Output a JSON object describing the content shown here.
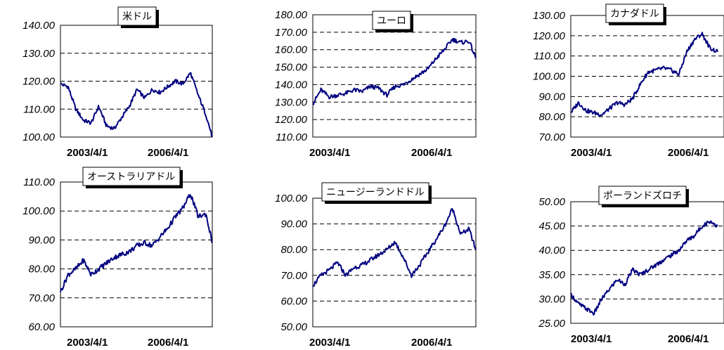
{
  "chart_data": [
    {
      "type": "line",
      "title": "米ドル",
      "xlabel": "",
      "ylabel": "",
      "x_ticks": [
        "2003/4/1",
        "2006/4/1"
      ],
      "y_ticks": [
        "100.00",
        "110.00",
        "120.00",
        "130.00",
        "140.00"
      ],
      "ylim": [
        100,
        140
      ],
      "grid": "horizontal dashed",
      "line_color": "#00007f",
      "series": [
        {
          "x": [
            "2003/4/1",
            "2003/7/1",
            "2003/10/1",
            "2004/1/1",
            "2004/4/1",
            "2004/7/1",
            "2004/10/1",
            "2005/1/1",
            "2005/4/1",
            "2005/7/1",
            "2005/10/1",
            "2006/1/1",
            "2006/4/1",
            "2006/7/1",
            "2006/10/1",
            "2007/1/1",
            "2007/4/1",
            "2007/7/1",
            "2007/10/1",
            "2008/1/1",
            "2008/3/17"
          ],
          "values": [
            119,
            118,
            110,
            106,
            105,
            111,
            104,
            103,
            107,
            111,
            117,
            114,
            117,
            116,
            118,
            120,
            119,
            123,
            115,
            108,
            100
          ]
        }
      ]
    },
    {
      "type": "line",
      "title": "ユーロ",
      "xlabel": "",
      "ylabel": "",
      "x_ticks": [
        "2003/4/1",
        "2006/4/1"
      ],
      "y_ticks": [
        "110.00",
        "120.00",
        "130.00",
        "140.00",
        "150.00",
        "160.00",
        "170.00",
        "180.00"
      ],
      "ylim": [
        110,
        180
      ],
      "grid": "horizontal dashed",
      "line_color": "#00007f",
      "series": [
        {
          "x": [
            "2003/4/1",
            "2003/7/1",
            "2003/10/1",
            "2004/1/1",
            "2004/4/1",
            "2004/7/1",
            "2004/10/1",
            "2005/1/1",
            "2005/4/1",
            "2005/7/1",
            "2005/10/1",
            "2006/1/1",
            "2006/4/1",
            "2006/7/1",
            "2006/10/1",
            "2007/1/1",
            "2007/4/1",
            "2007/7/1",
            "2007/10/1",
            "2008/1/1",
            "2008/3/17"
          ],
          "values": [
            129,
            137,
            133,
            134,
            135,
            137,
            136,
            139,
            138,
            134,
            139,
            140,
            143,
            146,
            149,
            155,
            160,
            166,
            164,
            165,
            155
          ]
        }
      ]
    },
    {
      "type": "line",
      "title": "カナダドル",
      "xlabel": "",
      "ylabel": "",
      "x_ticks": [
        "2003/4/1",
        "2006/4/1"
      ],
      "y_ticks": [
        "70.00",
        "80.00",
        "90.00",
        "100.00",
        "110.00",
        "120.00",
        "130.00"
      ],
      "ylim": [
        70,
        130
      ],
      "grid": "horizontal dashed",
      "line_color": "#00007f",
      "series": [
        {
          "x": [
            "2003/4/1",
            "2003/7/1",
            "2003/10/1",
            "2004/1/1",
            "2004/4/1",
            "2004/7/1",
            "2004/10/1",
            "2005/1/1",
            "2005/4/1",
            "2005/7/1",
            "2005/10/1",
            "2006/1/1",
            "2006/4/1",
            "2006/7/1",
            "2006/10/1",
            "2007/1/1",
            "2007/4/1",
            "2007/7/1",
            "2007/10/1",
            "2008/1/1"
          ],
          "values": [
            82,
            87,
            83,
            82,
            81,
            84,
            87,
            86,
            89,
            96,
            102,
            103,
            104,
            103,
            101,
            112,
            118,
            121,
            114,
            112
          ]
        }
      ]
    },
    {
      "type": "line",
      "title": "オーストラリアドル",
      "xlabel": "",
      "ylabel": "",
      "x_ticks": [
        "2003/4/1",
        "2006/4/1"
      ],
      "y_ticks": [
        "60.00",
        "70.00",
        "80.00",
        "90.00",
        "100.00",
        "110.00"
      ],
      "ylim": [
        60,
        110
      ],
      "grid": "horizontal dashed",
      "line_color": "#00007f",
      "series": [
        {
          "x": [
            "2003/4/1",
            "2003/7/1",
            "2003/10/1",
            "2004/1/1",
            "2004/4/1",
            "2004/7/1",
            "2004/10/1",
            "2005/1/1",
            "2005/4/1",
            "2005/7/1",
            "2005/10/1",
            "2006/1/1",
            "2006/4/1",
            "2006/7/1",
            "2006/10/1",
            "2007/1/1",
            "2007/4/1",
            "2007/7/1",
            "2007/10/1",
            "2008/1/1",
            "2008/3/17"
          ],
          "values": [
            72,
            78,
            80,
            83,
            78,
            80,
            82,
            84,
            85,
            86,
            88,
            89,
            88,
            91,
            94,
            98,
            101,
            106,
            98,
            99,
            89
          ]
        }
      ]
    },
    {
      "type": "line",
      "title": "ニュージーランドドル",
      "xlabel": "",
      "ylabel": "",
      "x_ticks": [
        "2003/4/1",
        "2006/4/1"
      ],
      "y_ticks": [
        "50.00",
        "60.00",
        "70.00",
        "80.00",
        "90.00",
        "100.00"
      ],
      "ylim": [
        50,
        100
      ],
      "grid": "horizontal dashed",
      "line_color": "#00007f",
      "series": [
        {
          "x": [
            "2003/4/1",
            "2003/7/1",
            "2003/10/1",
            "2004/1/1",
            "2004/4/1",
            "2004/7/1",
            "2004/10/1",
            "2005/1/1",
            "2005/4/1",
            "2005/7/1",
            "2005/10/1",
            "2006/1/1",
            "2006/4/1",
            "2006/7/1",
            "2006/10/1",
            "2007/1/1",
            "2007/4/1",
            "2007/7/1",
            "2007/10/1",
            "2008/1/1",
            "2008/3/17"
          ],
          "values": [
            66,
            70,
            72,
            75,
            70,
            73,
            74,
            76,
            78,
            80,
            83,
            77,
            70,
            74,
            79,
            84,
            89,
            96,
            86,
            88,
            80
          ]
        }
      ]
    },
    {
      "type": "line",
      "title": "ポーランドズロチ",
      "xlabel": "",
      "ylabel": "",
      "x_ticks": [
        "2003/4/1",
        "2006/4/1"
      ],
      "y_ticks": [
        "25.00",
        "30.00",
        "35.00",
        "40.00",
        "45.00",
        "50.00"
      ],
      "ylim": [
        25,
        50
      ],
      "grid": "horizontal dashed",
      "line_color": "#00007f",
      "series": [
        {
          "x": [
            "2003/4/1",
            "2003/7/1",
            "2003/10/1",
            "2004/1/1",
            "2004/4/1",
            "2004/7/1",
            "2004/10/1",
            "2005/1/1",
            "2005/4/1",
            "2005/7/1",
            "2005/10/1",
            "2006/1/1",
            "2006/4/1",
            "2006/7/1",
            "2006/10/1",
            "2007/1/1",
            "2007/4/1",
            "2007/7/1",
            "2007/10/1",
            "2008/1/1"
          ],
          "values": [
            31,
            29,
            28,
            27,
            30,
            32,
            34,
            33,
            36,
            35,
            36,
            37,
            38,
            39,
            40,
            42,
            43,
            45,
            46,
            45
          ]
        }
      ]
    }
  ]
}
